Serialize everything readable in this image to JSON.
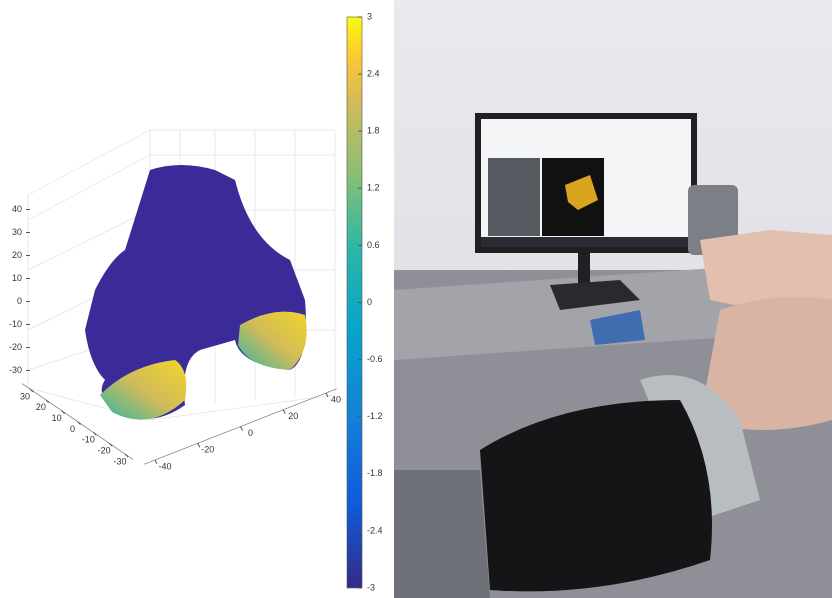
{
  "chart_data": {
    "type": "surface",
    "zlim": [
      -35,
      45
    ],
    "zticks": [
      40,
      30,
      20,
      10,
      0,
      -10,
      -20,
      -30
    ],
    "xlim": [
      -35,
      35
    ],
    "xticks": [
      30,
      20,
      10,
      0,
      -10,
      -20,
      -30
    ],
    "ylim": [
      -45,
      45
    ],
    "yticks": [
      -40,
      -20,
      0,
      20,
      40
    ],
    "colorbar": {
      "lim": [
        -3,
        3
      ],
      "ticks": [
        3,
        2.4,
        1.8,
        1.2,
        0.6,
        0,
        -0.6,
        -1.2,
        -1.8,
        -2.4,
        -3
      ]
    },
    "grid": true
  }
}
